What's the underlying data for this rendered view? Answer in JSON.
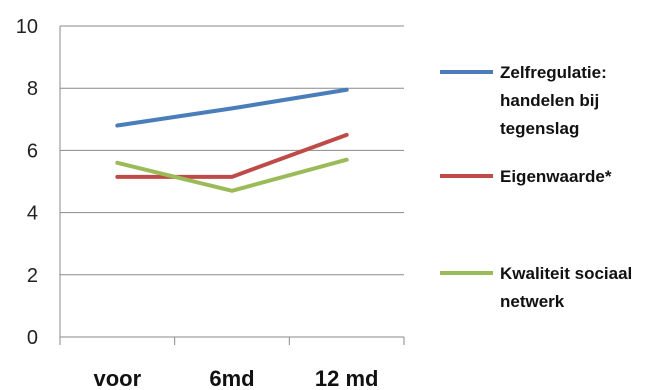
{
  "chart_data": {
    "type": "line",
    "categories": [
      "voor",
      "6md",
      "12 md"
    ],
    "ylim": [
      0,
      10
    ],
    "yticks": [
      "0",
      "2",
      "4",
      "6",
      "8",
      "10"
    ],
    "grid": "horizontal",
    "legend_position": "right",
    "series": [
      {
        "name": "Zelfregulatie: handelen bij tegenslag",
        "legend_lines": [
          "Zelfregulatie:",
          "handelen bij",
          "tegenslag"
        ],
        "color": "#4a7ebb",
        "values": [
          6.8,
          7.35,
          7.95
        ]
      },
      {
        "name": "Eigenwaarde*",
        "legend_lines": [
          "Eigenwaarde*"
        ],
        "color": "#be4b48",
        "values": [
          5.15,
          5.15,
          6.5
        ]
      },
      {
        "name": "Kwaliteit sociaal netwerk",
        "legend_lines": [
          "Kwaliteit sociaal",
          "netwerk"
        ],
        "color": "#9bbb59",
        "values": [
          5.6,
          4.7,
          5.7
        ]
      }
    ]
  }
}
